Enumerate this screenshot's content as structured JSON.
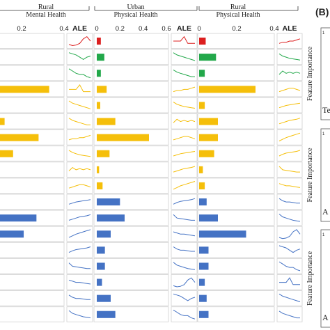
{
  "panel_b_label": "(B)",
  "panel_a": {
    "ale_label": "ALE",
    "panel_titles": [
      {
        "line1": "Rural",
        "line2": "Mental Health"
      },
      {
        "line1": "Urban",
        "line2": "Physical Health"
      },
      {
        "line1": "Rural",
        "line2": "Physical Health"
      }
    ],
    "row_colors": [
      "#dc1f1f",
      "#22a84a",
      "#22a84a",
      "#f5bf0a",
      "#f5bf0a",
      "#f5bf0a",
      "#f5bf0a",
      "#f5bf0a",
      "#f5bf0a",
      "#f5bf0a",
      "#4472c4",
      "#4472c4",
      "#4472c4",
      "#4472c4",
      "#4472c4",
      "#4472c4",
      "#4472c4",
      "#4472c4"
    ]
  },
  "panel_b": {
    "ylabel": "Feature Importance",
    "cut_texts": [
      "Te",
      "A",
      "A"
    ],
    "tick_fragment": "1"
  },
  "chart_data": [
    {
      "type": "bar",
      "orientation": "horizontal",
      "title": "Rural Mental Health",
      "xlim": [
        0,
        0.4
      ],
      "xticks": [
        "0.2",
        "0.4"
      ],
      "values": [
        0.0,
        0.0,
        0.0,
        0.33,
        0.0,
        0.12,
        0.28,
        0.16,
        0.04,
        0.04,
        0.02,
        0.27,
        0.21,
        0.01,
        0.01,
        0.01,
        0.09,
        0.08
      ]
    },
    {
      "type": "bar",
      "orientation": "horizontal",
      "title": "Urban Physical Health",
      "xlim": [
        0,
        0.6
      ],
      "xticks": [
        "0",
        "0.2",
        "0.4",
        "0.6"
      ],
      "values": [
        0.035,
        0.065,
        0.035,
        0.085,
        0.03,
        0.16,
        0.45,
        0.11,
        0.02,
        0.05,
        0.2,
        0.24,
        0.12,
        0.07,
        0.07,
        0.045,
        0.12,
        0.16
      ]
    },
    {
      "type": "bar",
      "orientation": "horizontal",
      "title": "Rural Physical Health",
      "xlim": [
        0,
        0.4
      ],
      "xticks": [
        "0",
        "0.2",
        "0.4"
      ],
      "values": [
        0.035,
        0.09,
        0.03,
        0.3,
        0.03,
        0.1,
        0.1,
        0.08,
        0.02,
        0.03,
        0.04,
        0.1,
        0.25,
        0.05,
        0.05,
        0.03,
        0.04,
        0.05
      ]
    }
  ]
}
